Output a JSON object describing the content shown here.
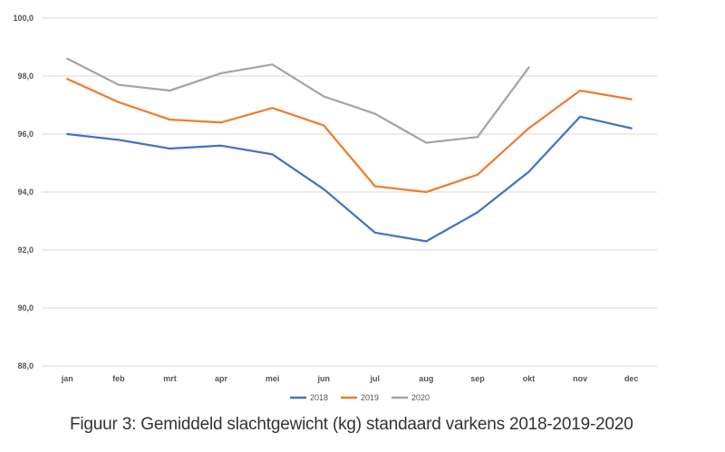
{
  "caption": "Figuur 3: Gemiddeld slachtgewicht (kg) standaard varkens 2018-2019-2020",
  "chart_data": {
    "type": "line",
    "title": "",
    "xlabel": "",
    "ylabel": "",
    "categories": [
      "jan",
      "feb",
      "mrt",
      "apr",
      "mei",
      "jun",
      "jul",
      "aug",
      "sep",
      "okt",
      "nov",
      "dec"
    ],
    "ylim": [
      88.0,
      100.0
    ],
    "yticks": [
      "88,0",
      "90,0",
      "92,0",
      "94,0",
      "96,0",
      "98,0",
      "100,0"
    ],
    "grid": "horizontal",
    "legend_position": "bottom",
    "series": [
      {
        "name": "2018",
        "color": "#4472c4",
        "values": [
          96.0,
          95.8,
          95.5,
          95.6,
          95.3,
          94.1,
          92.6,
          92.3,
          93.3,
          94.7,
          96.6,
          96.2
        ]
      },
      {
        "name": "2019",
        "color": "#ed7d31",
        "values": [
          97.9,
          97.1,
          96.5,
          96.4,
          96.9,
          96.3,
          94.2,
          94.0,
          94.6,
          96.2,
          97.5,
          97.2
        ]
      },
      {
        "name": "2020",
        "color": "#a5a5a5",
        "values": [
          98.6,
          97.7,
          97.5,
          98.1,
          98.4,
          97.3,
          96.7,
          95.7,
          95.9,
          98.3,
          null,
          null
        ]
      }
    ]
  }
}
